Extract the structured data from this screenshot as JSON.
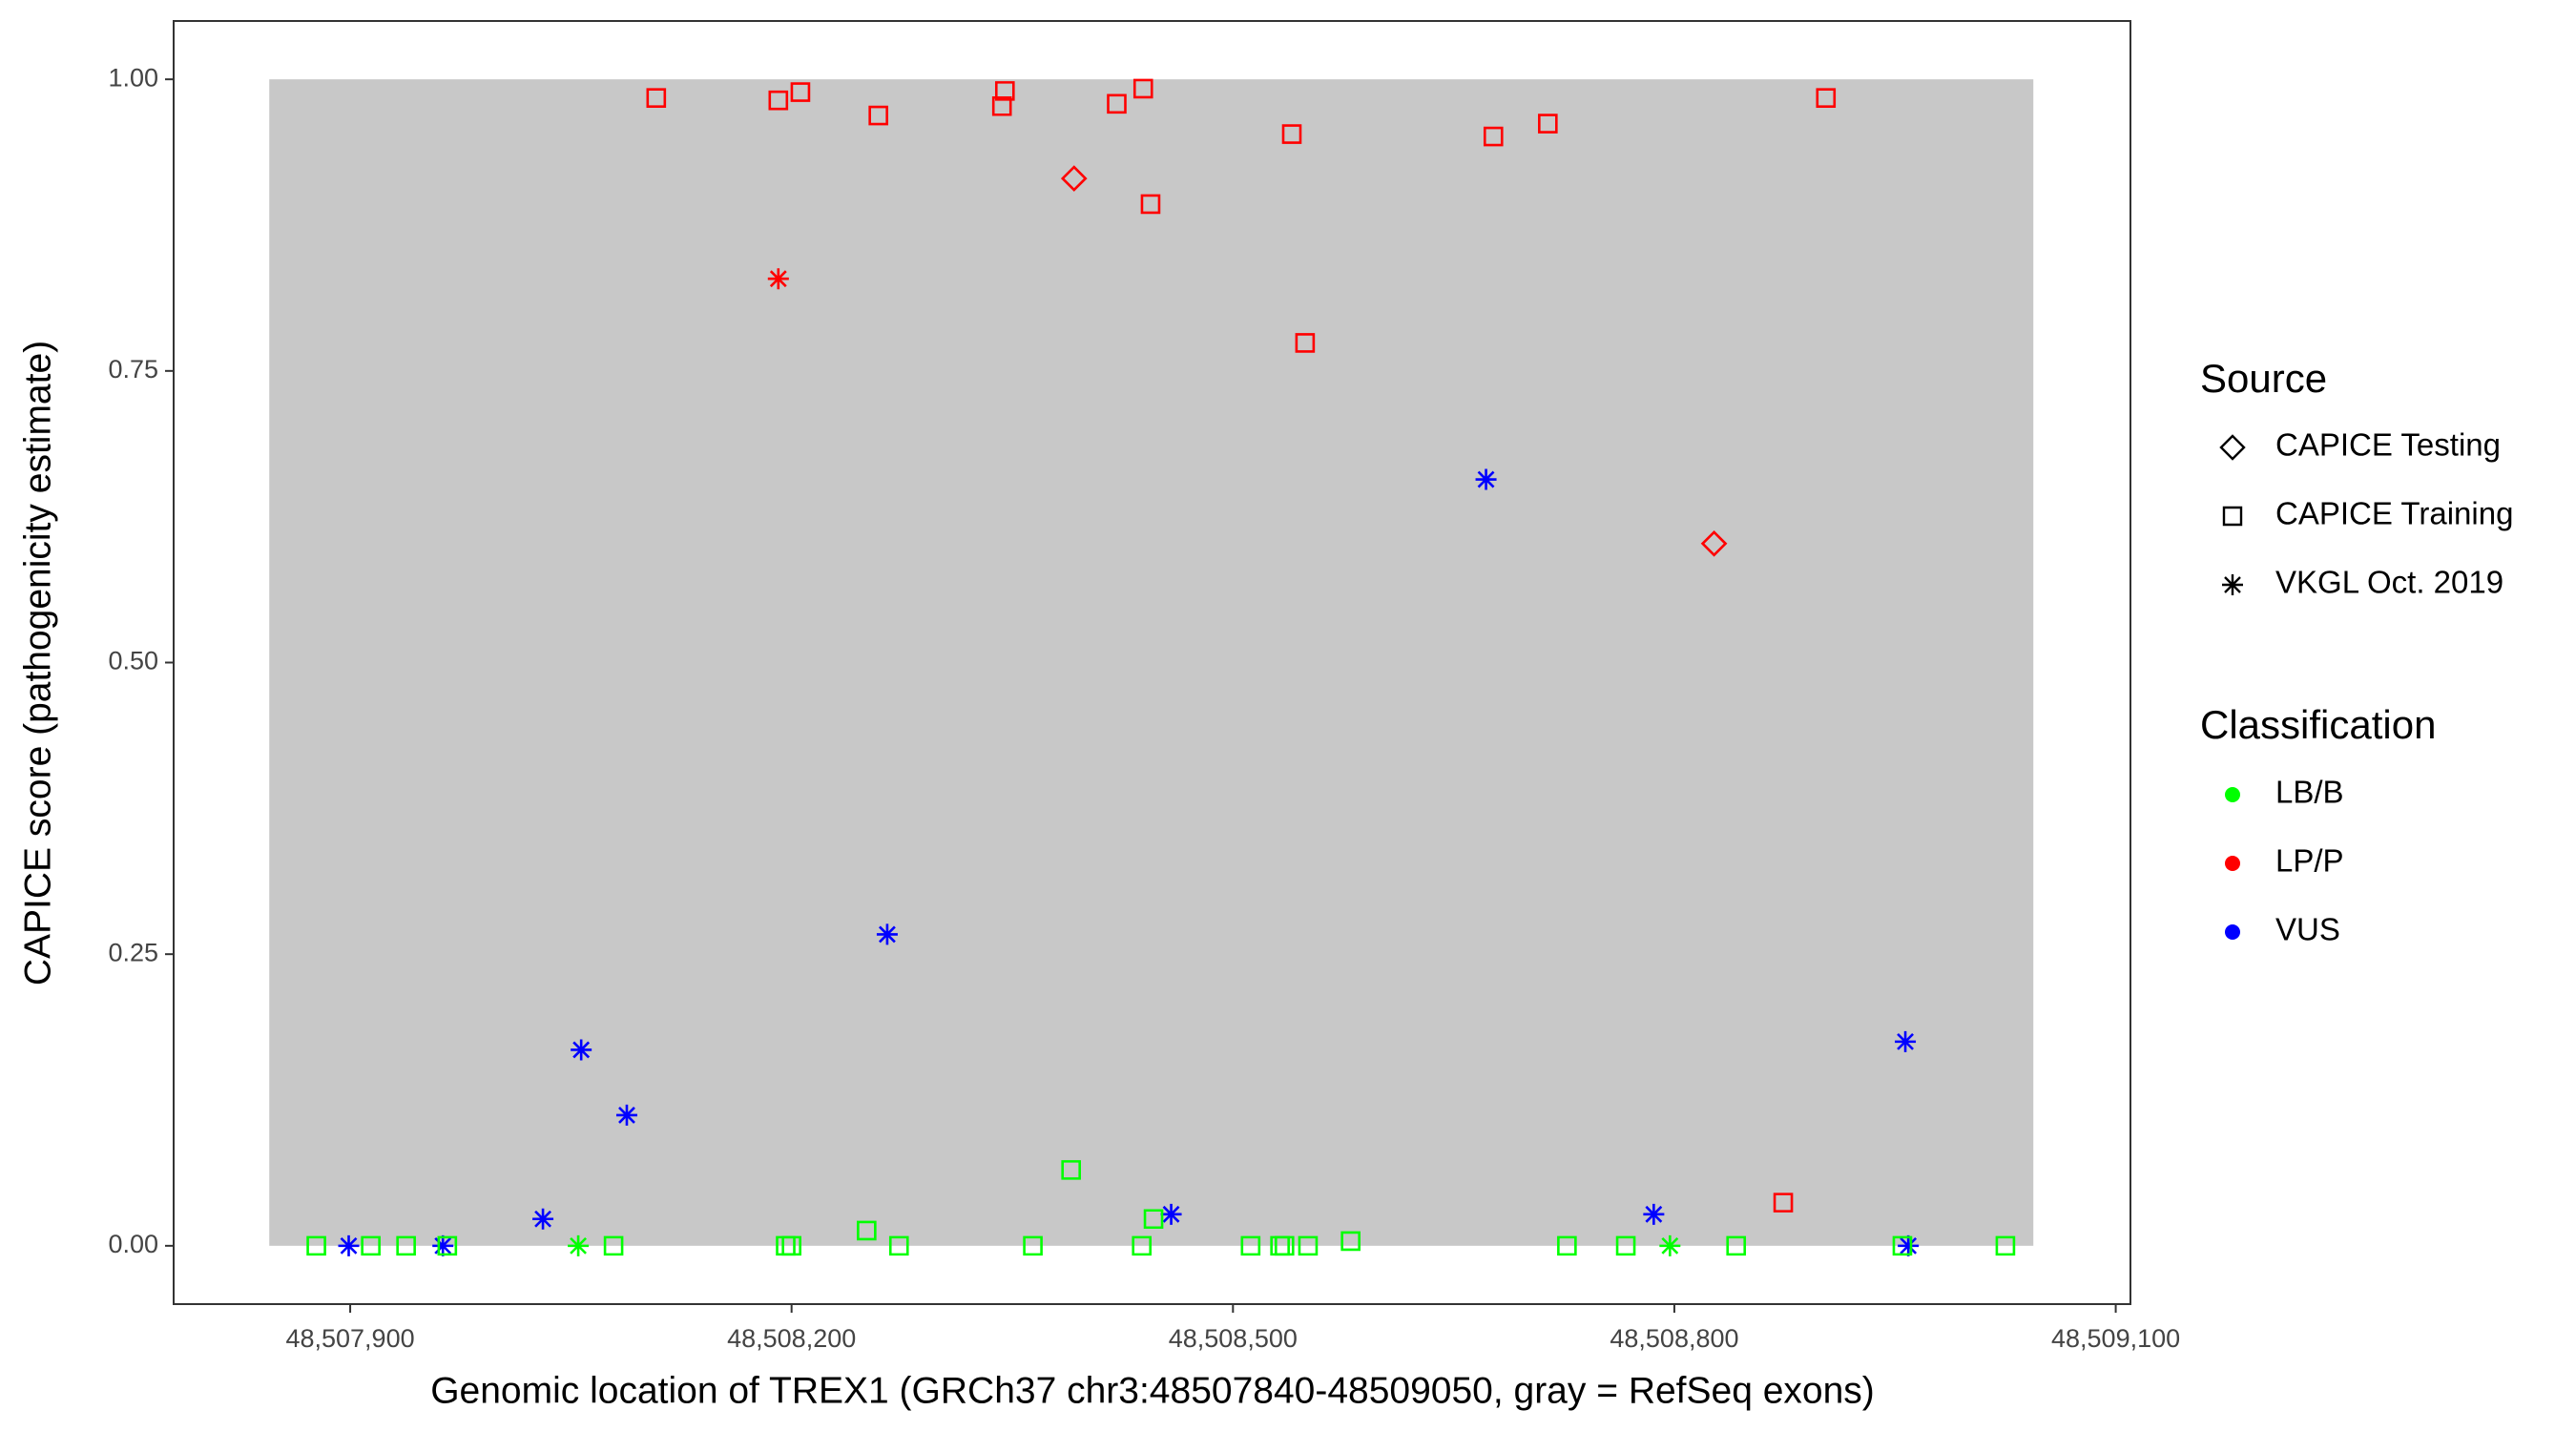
{
  "chart_data": {
    "type": "scatter",
    "x_label": "Genomic location of TREX1 (GRCh37 chr3:48507840-48509050, gray = RefSeq exons)",
    "y_label": "CAPICE score (pathogenicity estimate)",
    "xlim": [
      48507780,
      48509110
    ],
    "ylim": [
      -0.05,
      1.05
    ],
    "xticks": [
      {
        "value": 48507900,
        "label": "48,507,900"
      },
      {
        "value": 48508200,
        "label": "48,508,200"
      },
      {
        "value": 48508500,
        "label": "48,508,500"
      },
      {
        "value": 48508800,
        "label": "48,508,800"
      },
      {
        "value": 48509100,
        "label": "48,509,100"
      }
    ],
    "yticks": [
      {
        "value": 0,
        "label": "0.00"
      },
      {
        "value": 0.25,
        "label": "0.25"
      },
      {
        "value": 0.5,
        "label": "0.50"
      },
      {
        "value": 0.75,
        "label": "0.75"
      },
      {
        "value": 1,
        "label": "1.00"
      }
    ],
    "exon_region": {
      "x": [
        48507845,
        48509044
      ],
      "y": [
        0,
        1
      ],
      "color": "#c8c8c8"
    },
    "source_legend": {
      "title": "Source",
      "items": [
        {
          "label": "CAPICE Testing",
          "shape": "diamond"
        },
        {
          "label": "CAPICE Training",
          "shape": "square"
        },
        {
          "label": "VKGL Oct. 2019",
          "shape": "star"
        }
      ]
    },
    "classification_legend": {
      "title": "Classification",
      "items": [
        {
          "label": "LB/B",
          "color": "#00ff00"
        },
        {
          "label": "LP/P",
          "color": "#ff0000"
        },
        {
          "label": "VUS",
          "color": "#0000ff"
        }
      ]
    },
    "series": [
      {
        "shape": "diamond",
        "color": "#ff0000",
        "x": [
          48508392,
          48508827
        ],
        "values": [
          0.915,
          0.602
        ]
      },
      {
        "shape": "square",
        "color": "#ff0000",
        "x": [
          48508108,
          48508191,
          48508206,
          48508259,
          48508343,
          48508345,
          48508421,
          48508439,
          48508444,
          48508540,
          48508549,
          48508677,
          48508714,
          48508903,
          48508874
        ],
        "values": [
          0.984,
          0.982,
          0.989,
          0.969,
          0.977,
          0.99,
          0.979,
          0.992,
          0.893,
          0.953,
          0.774,
          0.951,
          0.962,
          0.984,
          0.037
        ]
      },
      {
        "shape": "star",
        "color": "#ff0000",
        "x": [
          48508191
        ],
        "values": [
          0.829
        ]
      },
      {
        "shape": "star",
        "color": "#0000ff",
        "x": [
          48507899,
          48507963,
          48508031,
          48508057,
          48508088,
          48508265,
          48508458,
          48508672,
          48508786,
          48508957,
          48508959
        ],
        "values": [
          0,
          0,
          0.023,
          0.168,
          0.112,
          0.267,
          0.027,
          0.657,
          0.027,
          0.175,
          0
        ]
      },
      {
        "shape": "square",
        "color": "#00ff00",
        "x": [
          48507877,
          48507914,
          48507938,
          48507966,
          48508079,
          48508196,
          48508200,
          48508273,
          48508364,
          48508438,
          48508512,
          48508532,
          48508535,
          48508551,
          48508727,
          48508767,
          48508842,
          48508955,
          48509025,
          48508251,
          48508390,
          48508446,
          48508580
        ],
        "values": [
          0,
          0,
          0,
          0,
          0,
          0,
          0,
          0,
          0,
          0,
          0,
          0,
          0,
          0,
          0,
          0,
          0,
          0,
          0,
          0.013,
          0.065,
          0.023,
          0.004
        ]
      },
      {
        "shape": "star",
        "color": "#00ff00",
        "x": [
          48508055,
          48508797
        ],
        "values": [
          0,
          0
        ]
      }
    ]
  }
}
